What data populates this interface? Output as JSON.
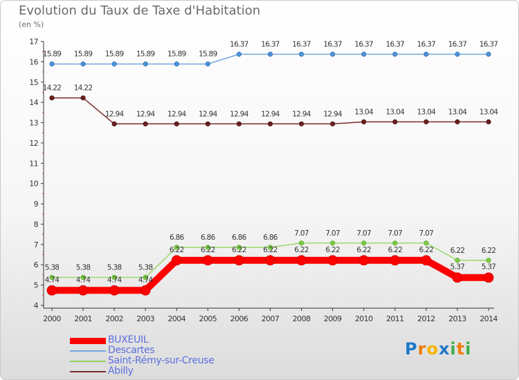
{
  "chart_data": {
    "type": "line",
    "title": "Evolution du Taux de Taxe d'Habitation",
    "ylabel": "(en %)",
    "xlabel": "",
    "x": [
      "2000",
      "2001",
      "2002",
      "2003",
      "2004",
      "2005",
      "2006",
      "2007",
      "2008",
      "2009",
      "2010",
      "2011",
      "2012",
      "2013",
      "2014"
    ],
    "ylim": [
      4,
      17
    ],
    "yticks": [
      "4",
      "5",
      "6",
      "7",
      "8",
      "9",
      "10",
      "11",
      "12",
      "13",
      "14",
      "15",
      "16",
      "17"
    ],
    "grid": false,
    "legend_position": "bottom-left",
    "series": [
      {
        "name": "BUXEUIL",
        "color": "#ff0000",
        "values": [
          4.74,
          4.74,
          4.74,
          4.74,
          6.22,
          6.22,
          6.22,
          6.22,
          6.22,
          6.22,
          6.22,
          6.22,
          6.22,
          5.37,
          5.37
        ],
        "labels": [
          "4.74",
          "4.74",
          "4.74",
          "4.74",
          "6.22",
          "6.22",
          "6.22",
          "6.22",
          "6.22",
          "6.22",
          "6.22",
          "6.22",
          "6.22",
          "5.37",
          "5.37"
        ]
      },
      {
        "name": "Descartes",
        "color": "#6fa8dc",
        "values": [
          15.89,
          15.89,
          15.89,
          15.89,
          15.89,
          15.89,
          16.37,
          16.37,
          16.37,
          16.37,
          16.37,
          16.37,
          16.37,
          16.37,
          16.37
        ],
        "labels": [
          "15.89",
          "15.89",
          "15.89",
          "15.89",
          "15.89",
          "15.89",
          "16.37",
          "16.37",
          "16.37",
          "16.37",
          "16.37",
          "16.37",
          "16.37",
          "16.37",
          "16.37"
        ]
      },
      {
        "name": "Saint-Rémy-sur-Creuse",
        "color": "#8fd15a",
        "values": [
          5.38,
          5.38,
          5.38,
          5.38,
          6.86,
          6.86,
          6.86,
          6.86,
          7.07,
          7.07,
          7.07,
          7.07,
          7.07,
          6.22,
          6.22
        ],
        "labels": [
          "5.38",
          "5.38",
          "5.38",
          "5.38",
          "6.86",
          "6.86",
          "6.86",
          "6.86",
          "7.07",
          "7.07",
          "7.07",
          "7.07",
          "7.07",
          "6.22",
          "6.22"
        ]
      },
      {
        "name": "Abilly",
        "color": "#7b2c2c",
        "values": [
          14.22,
          14.22,
          12.94,
          12.94,
          12.94,
          12.94,
          12.94,
          12.94,
          12.94,
          12.94,
          13.04,
          13.04,
          13.04,
          13.04,
          13.04
        ],
        "labels": [
          "14.22",
          "14.22",
          "12.94",
          "12.94",
          "12.94",
          "12.94",
          "12.94",
          "12.94",
          "12.94",
          "12.94",
          "13.04",
          "13.04",
          "13.04",
          "13.04",
          "13.04"
        ]
      }
    ]
  },
  "logo": {
    "text": "Proxiti",
    "letters": [
      "P",
      "r",
      "o",
      "x",
      "i",
      "t",
      "i"
    ],
    "colors": [
      "#1f78c8",
      "#f07d00",
      "#f4b400",
      "#1f78c8",
      "#3fae49",
      "#f07d00",
      "#3fae49"
    ]
  }
}
